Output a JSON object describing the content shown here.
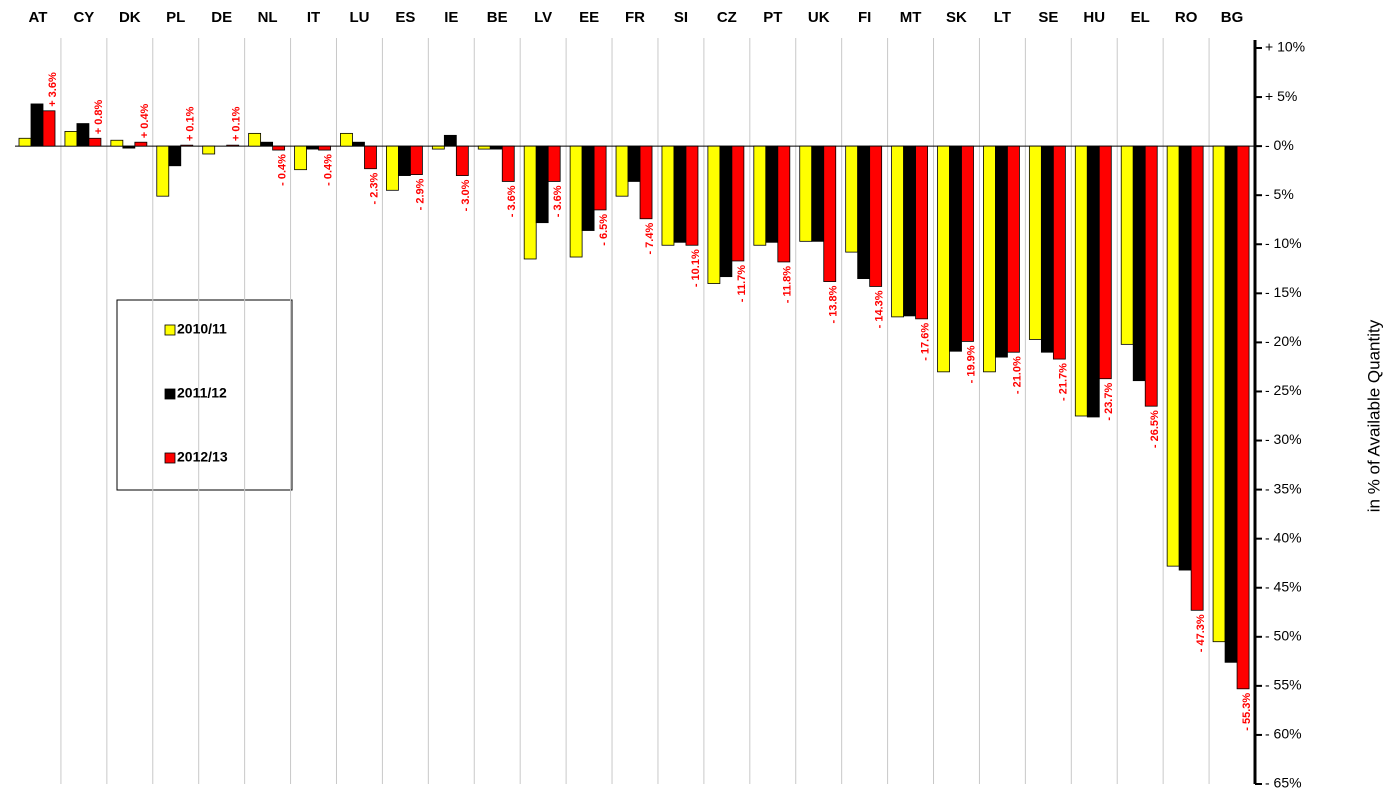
{
  "chart_data": {
    "type": "bar",
    "y_label": "in % of Available Quantity",
    "categories": [
      "AT",
      "CY",
      "DK",
      "PL",
      "DE",
      "NL",
      "IT",
      "LU",
      "ES",
      "IE",
      "BE",
      "LV",
      "EE",
      "FR",
      "SI",
      "CZ",
      "PT",
      "UK",
      "FI",
      "MT",
      "SK",
      "LT",
      "SE",
      "HU",
      "EL",
      "RO",
      "BG"
    ],
    "series": [
      {
        "name": "2010/11",
        "color": "#ffff00",
        "values": [
          0.8,
          1.5,
          0.6,
          -5.1,
          -0.8,
          1.3,
          -2.4,
          1.3,
          -4.5,
          -0.3,
          -0.3,
          -11.5,
          -11.3,
          -5.1,
          -10.1,
          -14.0,
          -10.1,
          -9.7,
          -10.8,
          -17.4,
          -23.0,
          -23.0,
          -19.7,
          -27.5,
          -20.2,
          -42.8,
          -50.5
        ]
      },
      {
        "name": "2011/12",
        "color": "#000000",
        "values": [
          4.3,
          2.3,
          -0.2,
          -2.0,
          0.0,
          0.4,
          -0.3,
          0.4,
          -3.0,
          1.1,
          -0.3,
          -7.8,
          -8.6,
          -3.6,
          -9.8,
          -13.3,
          -9.8,
          -9.7,
          -13.5,
          -17.3,
          -20.9,
          -21.5,
          -21.0,
          -27.6,
          -23.9,
          -43.2,
          -52.6
        ]
      },
      {
        "name": "2012/13",
        "color": "#ff0000",
        "values": [
          3.6,
          0.8,
          0.4,
          0.1,
          0.1,
          -0.4,
          -0.4,
          -2.3,
          -2.9,
          -3.0,
          -3.6,
          -3.6,
          -6.5,
          -7.4,
          -10.1,
          -11.7,
          -11.8,
          -13.8,
          -14.3,
          -17.6,
          -19.9,
          -21.0,
          -21.7,
          -23.7,
          -26.5,
          -47.3,
          -55.3
        ],
        "value_labels": [
          "+ 3.6%",
          "+ 0.8%",
          "+ 0.4%",
          "+ 0.1%",
          "+ 0.1%",
          "- 0.4%",
          "- 0.4%",
          "- 2.3%",
          "- 2.9%",
          "- 3.0%",
          "- 3.6%",
          "- 3.6%",
          "- 6.5%",
          "- 7.4%",
          "- 10.1%",
          "- 11.7%",
          "- 11.8%",
          "- 13.8%",
          "- 14.3%",
          "- 17.6%",
          "- 19.9%",
          "- 21.0%",
          "- 21.7%",
          "- 23.7%",
          "- 26.5%",
          "- 47.3%",
          "- 55.3%"
        ]
      }
    ],
    "ylim": [
      -65,
      10
    ],
    "yticks": [
      {
        "value": 10,
        "label": "+ 10%"
      },
      {
        "value": 5,
        "label": "+ 5%"
      },
      {
        "value": 0,
        "label": "- 0%"
      },
      {
        "value": -5,
        "label": "- 5%"
      },
      {
        "value": -10,
        "label": "- 10%"
      },
      {
        "value": -15,
        "label": "- 15%"
      },
      {
        "value": -20,
        "label": "- 20%"
      },
      {
        "value": -25,
        "label": "- 25%"
      },
      {
        "value": -30,
        "label": "- 30%"
      },
      {
        "value": -35,
        "label": "- 35%"
      },
      {
        "value": -40,
        "label": "- 40%"
      },
      {
        "value": -45,
        "label": "- 45%"
      },
      {
        "value": -50,
        "label": "- 50%"
      },
      {
        "value": -55,
        "label": "- 55%"
      },
      {
        "value": -60,
        "label": "- 60%"
      },
      {
        "value": -65,
        "label": "- 65%"
      }
    ],
    "y_axis_side": "right",
    "legend_position": "left"
  }
}
